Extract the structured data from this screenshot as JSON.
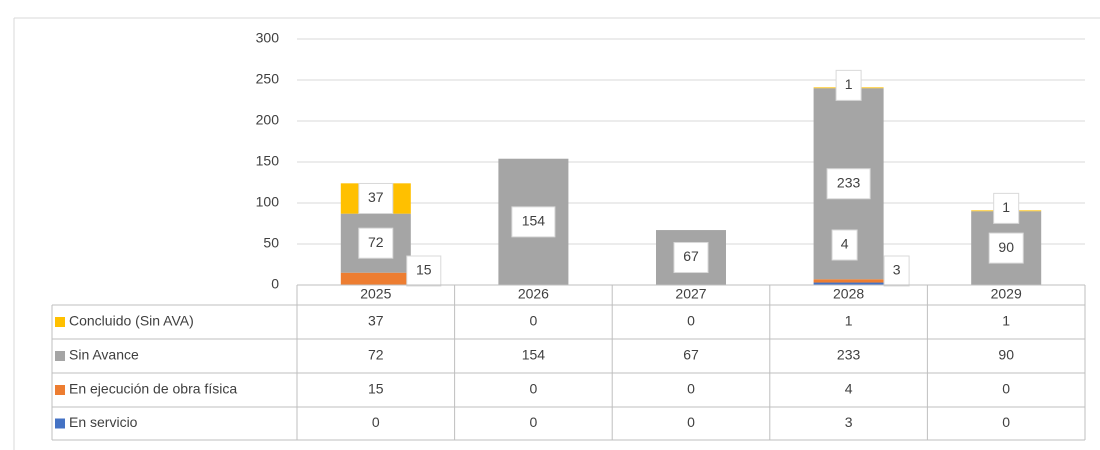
{
  "chart_data": {
    "type": "bar",
    "stacked": true,
    "categories": [
      "2025",
      "2026",
      "2027",
      "2028",
      "2029"
    ],
    "series": [
      {
        "name": "En servicio",
        "color": "#4472c4",
        "values": [
          0,
          0,
          0,
          3,
          0
        ]
      },
      {
        "name": "En ejecución de obra física",
        "color": "#ed7d31",
        "values": [
          15,
          0,
          0,
          4,
          0
        ]
      },
      {
        "name": "Sin Avance",
        "color": "#a5a5a5",
        "values": [
          72,
          154,
          67,
          233,
          90
        ]
      },
      {
        "name": "Concluido (Sin AVA)",
        "color": "#ffc000",
        "values": [
          37,
          0,
          0,
          1,
          1
        ]
      }
    ],
    "ylim": [
      0,
      300
    ],
    "yticks": [
      0,
      50,
      100,
      150,
      200,
      250,
      300
    ],
    "grid": true,
    "data_table": true
  }
}
